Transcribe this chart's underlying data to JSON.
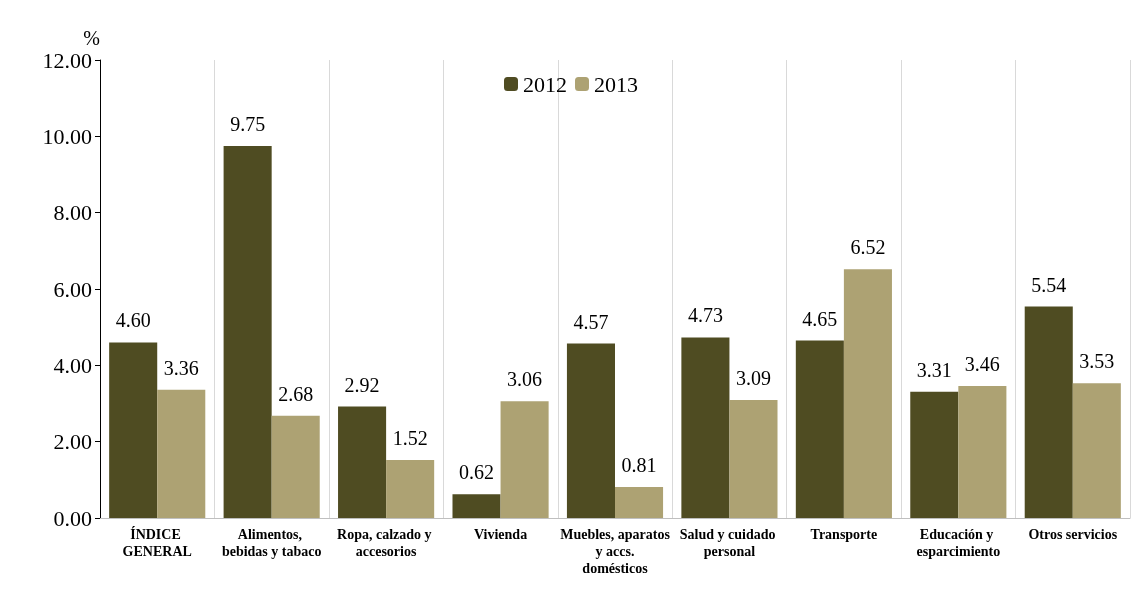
{
  "chart_data": {
    "type": "bar",
    "ylabel": "%",
    "categories": [
      "ÍNDICE GENERAL",
      "Alimentos, bebidas y tabaco",
      "Ropa, calzado y accesorios",
      "Vivienda",
      "Muebles, aparatos y accs. domésticos",
      "Salud y cuidado personal",
      "Transporte",
      "Educación y esparcimiento",
      "Otros servicios"
    ],
    "series": [
      {
        "name": "2012",
        "color": "#4f4c22",
        "values": [
          4.6,
          9.75,
          2.92,
          0.62,
          4.57,
          4.73,
          4.65,
          3.31,
          5.54
        ],
        "value_labels": [
          "4.60",
          "9.75",
          "2.92",
          "0.62",
          "4.57",
          "4.73",
          "4.65",
          "3.31",
          "5.54"
        ]
      },
      {
        "name": "2013",
        "color": "#ada273",
        "values": [
          3.36,
          2.68,
          1.52,
          3.06,
          0.81,
          3.09,
          6.52,
          3.46,
          3.53
        ],
        "value_labels": [
          "3.36",
          "2.68",
          "1.52",
          "3.06",
          "0.81",
          "3.09",
          "6.52",
          "3.46",
          "3.53"
        ]
      }
    ],
    "ylim": [
      0,
      12
    ],
    "yticks": [
      {
        "value": 0,
        "label": "0.00"
      },
      {
        "value": 2,
        "label": "2.00"
      },
      {
        "value": 4,
        "label": "4.00"
      },
      {
        "value": 6,
        "label": "6.00"
      },
      {
        "value": 8,
        "label": "8.00"
      },
      {
        "value": 10,
        "label": "10.00"
      },
      {
        "value": 12,
        "label": "12.00"
      }
    ],
    "grid": "x",
    "legend": "top"
  }
}
